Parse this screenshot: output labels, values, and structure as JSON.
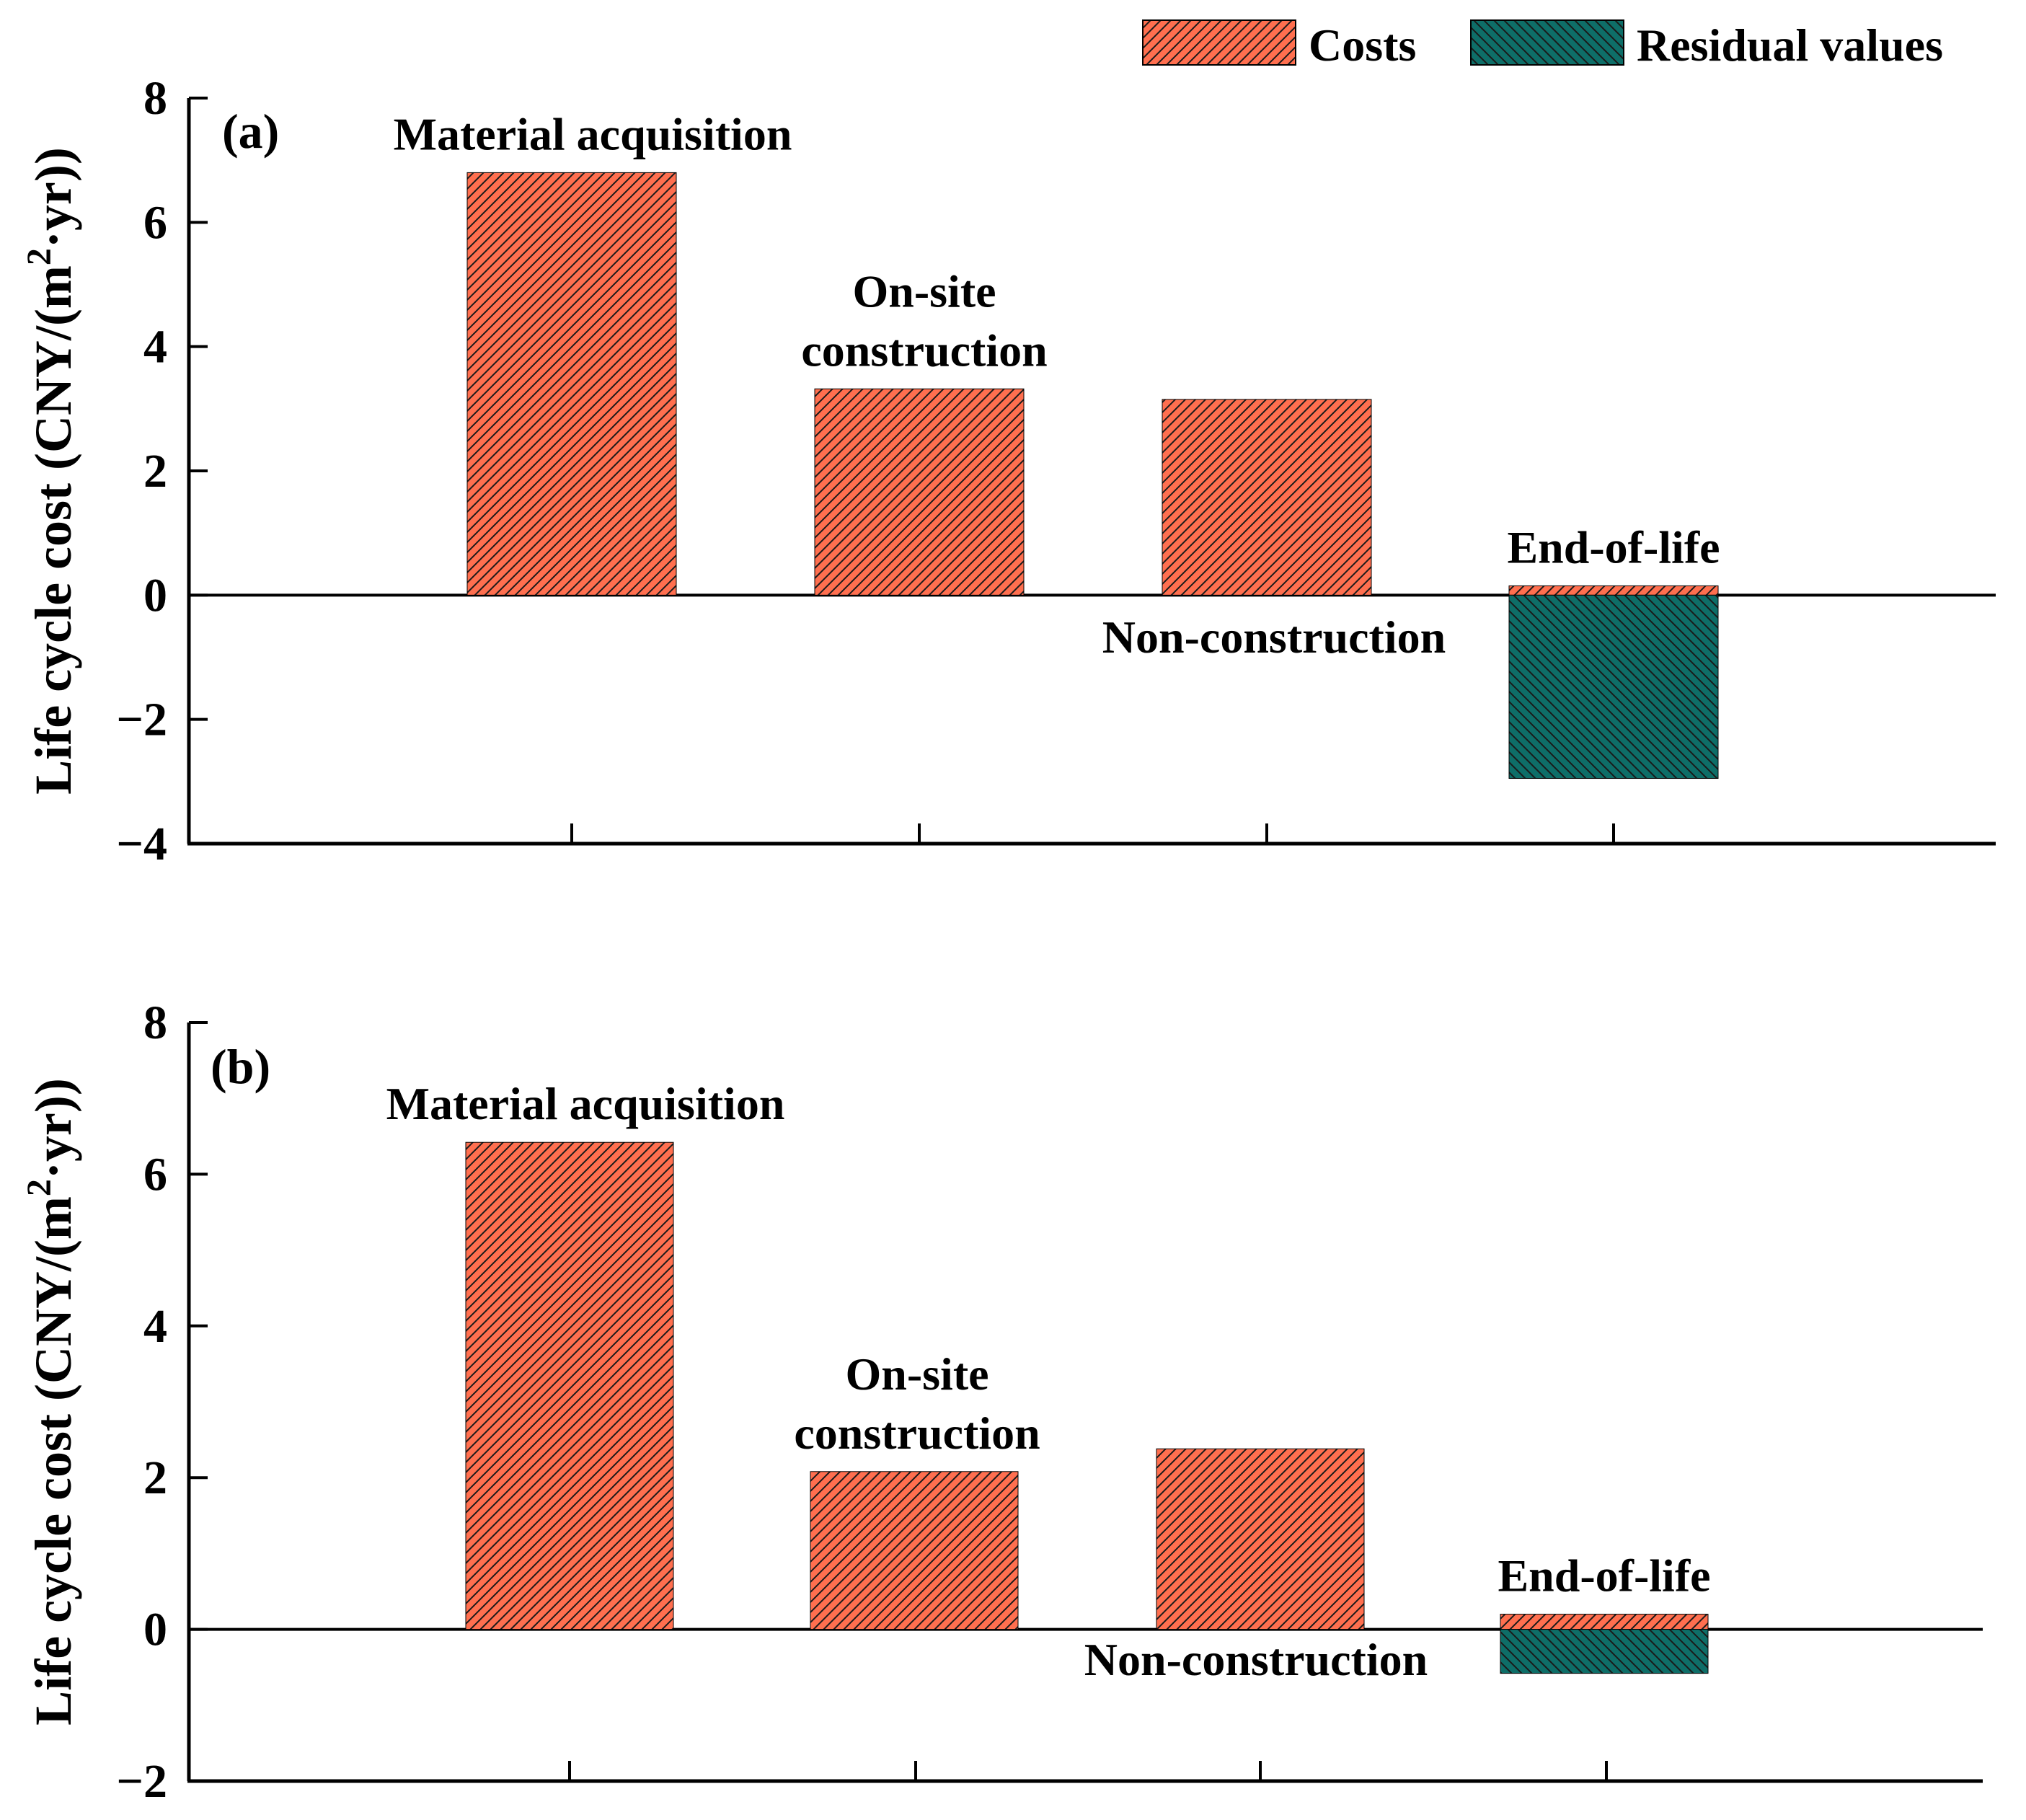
{
  "legend": {
    "placement": "top-right",
    "items": [
      {
        "label": "Costs",
        "color": "#FF6F4F",
        "pattern": "diagonal-forward"
      },
      {
        "label": "Residual values",
        "color": "#0E6E68",
        "pattern": "diagonal-backward"
      }
    ]
  },
  "chart_data": [
    {
      "type": "bar",
      "panel_label": "(a)",
      "ylabel": "Life cycle cost (CNY/(m²·yr))",
      "ylabel_parts": {
        "pre": "Life cycle cost (CNY/(m",
        "sup": "2",
        "post": "·yr))"
      },
      "ylim": [
        -4,
        8
      ],
      "yticks": [
        8,
        6,
        4,
        2,
        0,
        -2,
        -4
      ],
      "yticklabels": [
        "8",
        "6",
        "4",
        "2",
        "0",
        "−2",
        "−4"
      ],
      "categories": [
        "Material acquisition",
        "On-site construction",
        "Non-construction",
        "End-of-life"
      ],
      "category_labels": [
        {
          "lines": [
            "Material acquisition"
          ],
          "position": "above"
        },
        {
          "lines": [
            "On-site",
            "construction"
          ],
          "position": "above"
        },
        {
          "lines": [
            "Non-construction"
          ],
          "position": "below-left"
        },
        {
          "lines": [
            "End-of-life"
          ],
          "position": "above"
        }
      ],
      "series": [
        {
          "name": "Costs",
          "values": [
            6.8,
            3.32,
            3.15,
            0.15
          ]
        },
        {
          "name": "Residual values",
          "values": [
            0,
            0,
            0,
            -2.95
          ]
        }
      ],
      "grid": false
    },
    {
      "type": "bar",
      "panel_label": "(b)",
      "ylabel": "Life cycle cost (CNY/(m²·yr))",
      "ylabel_parts": {
        "pre": "Life cycle cost (CNY/(m",
        "sup": "2",
        "post": "·yr))"
      },
      "ylim": [
        -2,
        8
      ],
      "yticks": [
        8,
        6,
        4,
        2,
        0,
        -2
      ],
      "yticklabels": [
        "8",
        "6",
        "4",
        "2",
        "0",
        "−2"
      ],
      "categories": [
        "Material acquisition",
        "On-site construction",
        "Non-construction",
        "End-of-life"
      ],
      "category_labels": [
        {
          "lines": [
            "Material acquisition"
          ],
          "position": "above"
        },
        {
          "lines": [
            "On-site",
            "construction"
          ],
          "position": "above"
        },
        {
          "lines": [
            "Non-construction"
          ],
          "position": "below-left"
        },
        {
          "lines": [
            "End-of-life"
          ],
          "position": "above"
        }
      ],
      "series": [
        {
          "name": "Costs",
          "values": [
            6.42,
            2.08,
            2.38,
            0.2
          ]
        },
        {
          "name": "Residual values",
          "values": [
            0,
            0,
            0,
            -0.58
          ]
        }
      ],
      "grid": false
    }
  ]
}
